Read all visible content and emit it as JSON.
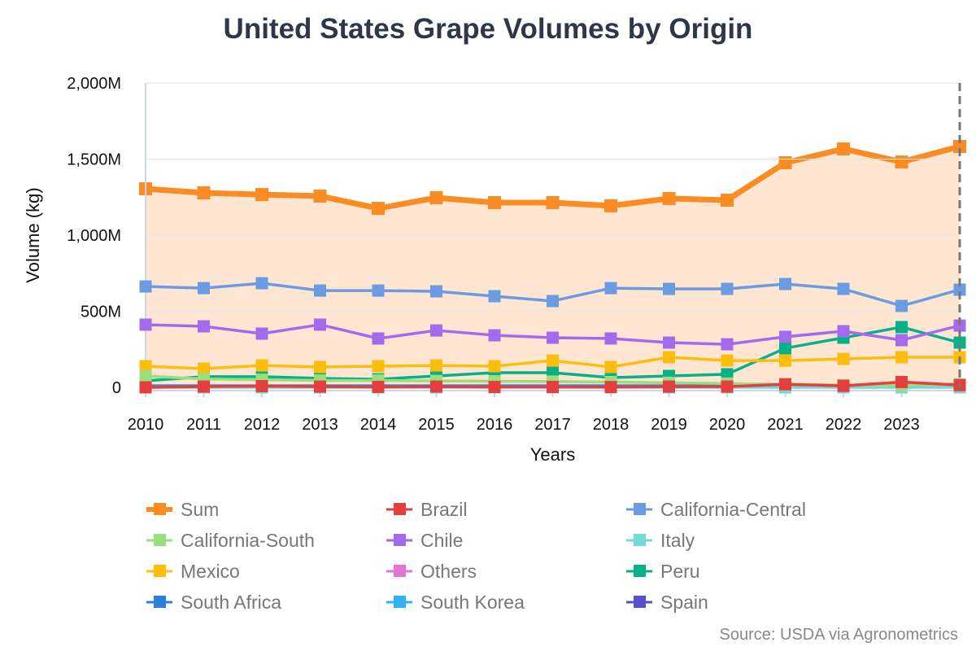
{
  "chart_data": {
    "type": "line",
    "title": "United States Grape Volumes by Origin",
    "xlabel": "Years",
    "ylabel": "Volume (kg)",
    "x": [
      2010,
      2011,
      2012,
      2013,
      2014,
      2015,
      2016,
      2017,
      2018,
      2019,
      2020,
      2021,
      2022,
      2023,
      2024
    ],
    "x_tick_labels": [
      "2010",
      "2011",
      "2012",
      "2013",
      "2014",
      "2015",
      "2016",
      "2017",
      "2018",
      "2019",
      "2020",
      "2021",
      "2022",
      "2023"
    ],
    "y_tick_labels": [
      "0",
      "500M",
      "1,000M",
      "1,500M",
      "2,000M"
    ],
    "y_ticks": [
      0,
      500,
      1000,
      1500,
      2000
    ],
    "ylim": [
      0,
      2000
    ],
    "y_unit": "millions kg",
    "grid": true,
    "legend_position": "bottom",
    "source": "Source: USDA via Agronometrics",
    "series": [
      {
        "name": "Sum",
        "color": "#fb8c23",
        "area": true,
        "values": [
          1305,
          1278,
          1267,
          1257,
          1176,
          1246,
          1214,
          1214,
          1193,
          1241,
          1230,
          1476,
          1567,
          1481,
          1583
        ]
      },
      {
        "name": "Brazil",
        "color": "#e53e3e",
        "values": [
          0,
          5,
          8,
          5,
          3,
          5,
          3,
          3,
          2,
          5,
          5,
          20,
          10,
          35,
          15
        ]
      },
      {
        "name": "California-Central",
        "color": "#6b9be0",
        "values": [
          663,
          652,
          684,
          636,
          636,
          631,
          599,
          567,
          652,
          647,
          647,
          679,
          647,
          535,
          642
        ]
      },
      {
        "name": "California-South",
        "color": "#9ade7e",
        "values": [
          75,
          55,
          50,
          45,
          45,
          42,
          40,
          38,
          35,
          30,
          25,
          20,
          15,
          15,
          20
        ]
      },
      {
        "name": "Chile",
        "color": "#a36bec",
        "values": [
          412,
          401,
          353,
          412,
          321,
          374,
          342,
          326,
          321,
          294,
          283,
          332,
          369,
          310,
          406
        ]
      },
      {
        "name": "Italy",
        "color": "#76d7d7",
        "values": [
          0,
          0,
          0,
          0,
          0,
          0,
          0,
          0,
          0,
          0,
          0,
          0,
          0,
          0,
          0
        ]
      },
      {
        "name": "Mexico",
        "color": "#fdbd0c",
        "values": [
          139,
          123,
          144,
          134,
          139,
          144,
          139,
          176,
          134,
          198,
          176,
          176,
          187,
          198,
          198
        ]
      },
      {
        "name": "Others",
        "color": "#e376d3",
        "values": [
          2,
          2,
          2,
          2,
          2,
          2,
          2,
          2,
          2,
          2,
          2,
          2,
          2,
          2,
          2
        ]
      },
      {
        "name": "Peru",
        "color": "#07b187",
        "values": [
          43,
          70,
          70,
          59,
          53,
          75,
          96,
          96,
          64,
          75,
          86,
          257,
          326,
          396,
          294
        ]
      },
      {
        "name": "South Africa",
        "color": "#2b7fd9",
        "values": [
          10,
          10,
          10,
          10,
          10,
          10,
          10,
          10,
          10,
          10,
          10,
          10,
          10,
          10,
          10
        ]
      },
      {
        "name": "South Korea",
        "color": "#31b0fe",
        "values": [
          5,
          5,
          5,
          5,
          5,
          5,
          5,
          null,
          null,
          null,
          null,
          null,
          null,
          null,
          null
        ]
      },
      {
        "name": "Spain",
        "color": "#5850c8",
        "values": [
          5,
          5,
          5,
          5,
          5,
          5,
          5,
          5,
          5,
          5,
          5,
          5,
          5,
          5,
          5
        ]
      }
    ],
    "cursor_x": 2024
  }
}
